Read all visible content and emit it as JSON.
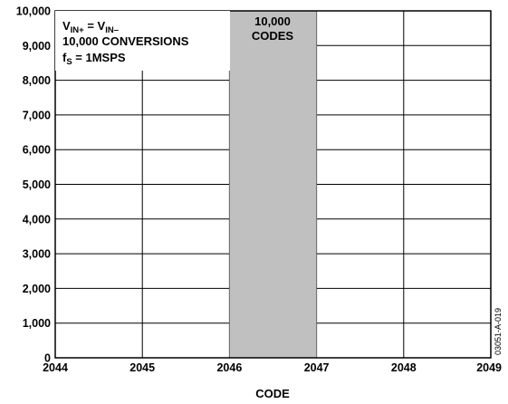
{
  "chart_data": {
    "type": "bar",
    "bins": [
      {
        "x": 2044,
        "value": 0
      },
      {
        "x": 2045,
        "value": 0
      },
      {
        "x": 2046,
        "value": 10000
      },
      {
        "x": 2047,
        "value": 0
      },
      {
        "x": 2048,
        "value": 0
      }
    ],
    "x_ticks": [
      "2044",
      "2045",
      "2046",
      "2047",
      "2048",
      "2049"
    ],
    "y_ticks": [
      "0",
      "1,000",
      "2,000",
      "3,000",
      "4,000",
      "5,000",
      "6,000",
      "7,000",
      "8,000",
      "9,000",
      "10,000"
    ],
    "xlim": [
      2044,
      2049
    ],
    "ylim": [
      0,
      10000
    ],
    "xlabel": "CODE",
    "ylabel": "",
    "grid": true,
    "bar_color": "#c0c0c0",
    "bar_label": {
      "line1": "10,000",
      "line2": "CODES"
    },
    "annotation": {
      "line1_base": "V",
      "line1_sub1": "IN+",
      "line1_mid": " = V",
      "line1_sub2": "IN–",
      "line2": "10,000 CONVERSIONS",
      "line3_base": "f",
      "line3_sub": "S",
      "line3_rest": " = 1MSPS"
    },
    "figure_id": "03051-A-019"
  }
}
